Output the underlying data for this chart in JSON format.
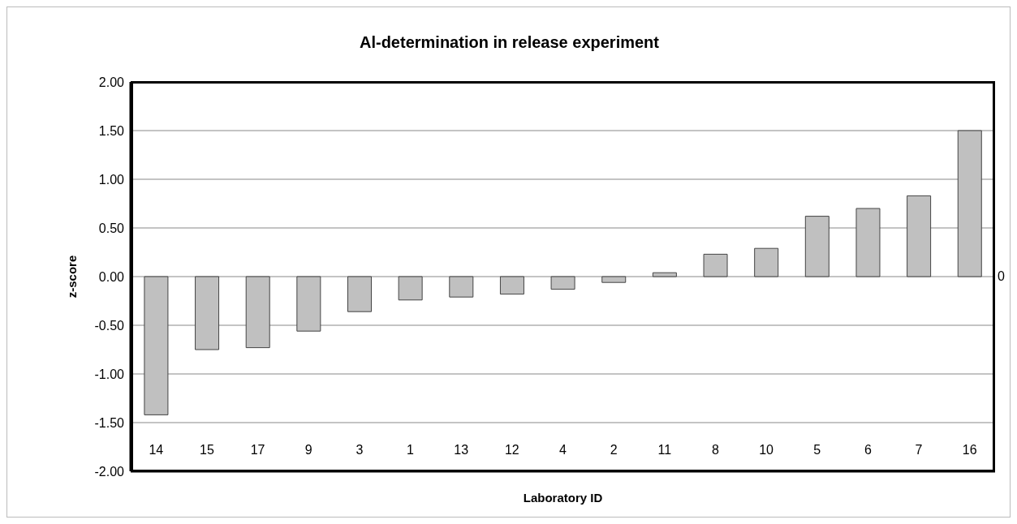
{
  "chart_data": {
    "type": "bar",
    "title": "Al-determination in release experiment",
    "xlabel": "Laboratory ID",
    "ylabel": "z-score",
    "categories": [
      "14",
      "15",
      "17",
      "9",
      "3",
      "1",
      "13",
      "12",
      "4",
      "2",
      "11",
      "8",
      "10",
      "5",
      "6",
      "7",
      "16"
    ],
    "values": [
      -1.42,
      -0.75,
      -0.73,
      -0.56,
      -0.36,
      -0.24,
      -0.21,
      -0.18,
      -0.13,
      -0.06,
      0.04,
      0.23,
      0.29,
      0.62,
      0.7,
      0.83,
      1.5
    ],
    "color": "#c0c0c0",
    "ylim": [
      -2,
      2
    ],
    "yticks": [
      {
        "value": -2,
        "label": "-2.00"
      },
      {
        "value": -1.5,
        "label": "-1.50"
      },
      {
        "value": -1,
        "label": "-1.00"
      },
      {
        "value": -0.5,
        "label": "-0.50"
      },
      {
        "value": 0,
        "label": "0.00"
      },
      {
        "value": 0.5,
        "label": "0.50"
      },
      {
        "value": 1,
        "label": "1.00"
      },
      {
        "value": 1.5,
        "label": "1.50"
      },
      {
        "value": 2,
        "label": "2.00"
      }
    ],
    "grid": "y",
    "annotations": [
      "0"
    ]
  }
}
